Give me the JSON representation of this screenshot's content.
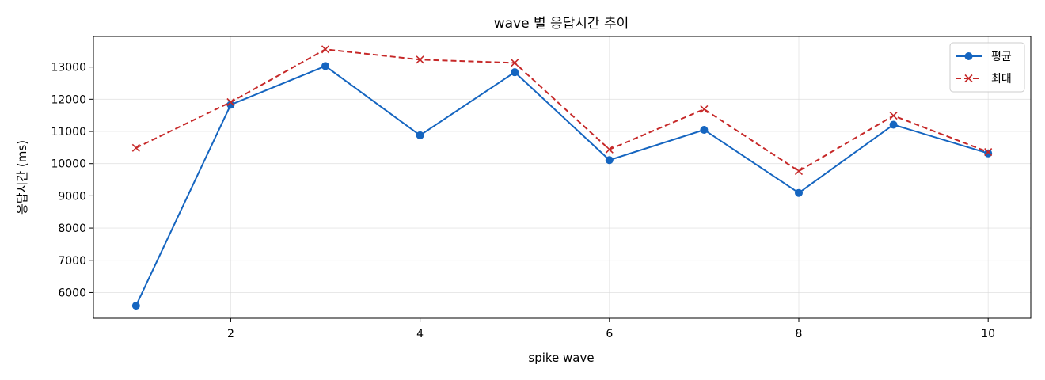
{
  "chart_data": {
    "type": "line",
    "title": "wave 별 응답시간 추이",
    "xlabel": "spike wave",
    "ylabel": "응답시간 (ms)",
    "x": [
      1,
      2,
      3,
      4,
      5,
      6,
      7,
      8,
      9,
      10
    ],
    "xlim": [
      0.55,
      10.45
    ],
    "ylim": [
      5200,
      13950
    ],
    "xticks": [
      2,
      4,
      6,
      8,
      10
    ],
    "yticks": [
      6000,
      7000,
      8000,
      9000,
      10000,
      11000,
      12000,
      13000
    ],
    "grid": true,
    "legend_position": "top-right",
    "series": [
      {
        "name": "평균",
        "values": [
          5590,
          11830,
          13030,
          10880,
          12840,
          10110,
          11050,
          9090,
          11210,
          10320
        ],
        "color": "#1565c0",
        "line_style": "solid",
        "marker": "circle"
      },
      {
        "name": "최대",
        "values": [
          10490,
          11910,
          13550,
          13230,
          13130,
          10440,
          11690,
          9770,
          11490,
          10360
        ],
        "color": "#c62828",
        "line_style": "dashed",
        "marker": "x"
      }
    ]
  }
}
